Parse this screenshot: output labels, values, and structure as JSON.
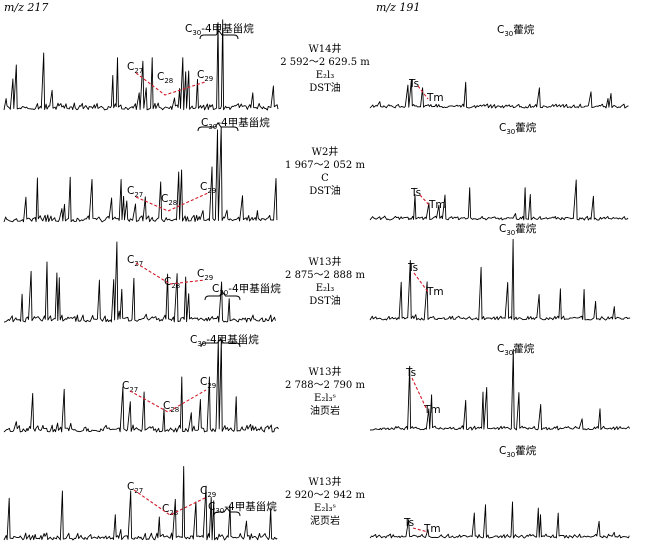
{
  "headers": {
    "left": "m/z 217",
    "right": "m/z 191"
  },
  "chart_data": {
    "type": "line",
    "title": "",
    "panels": [
      {
        "well": "W14井",
        "depth": "2 592～2 629.5 m",
        "formation": "E₂l₃",
        "sample": "DST油",
        "m217_labels": {
          "c27": "C27",
          "c28": "C28",
          "c29": "C29",
          "methyl": "C30-4甲基甾烷"
        },
        "m191_labels": {
          "ts": "Ts",
          "tm": "Tm",
          "hopane": "C30藿烷"
        }
      },
      {
        "well": "W2井",
        "depth": "1 967～2 052 m",
        "formation": "C",
        "sample": "DST油",
        "m217_labels": {
          "c27": "C27",
          "c28": "C28",
          "c29": "C29",
          "methyl": "C30-4甲基甾烷"
        },
        "m191_labels": {
          "ts": "Ts",
          "tm": "Tm",
          "hopane": "C30藿烷"
        }
      },
      {
        "well": "W13井",
        "depth": "2 875～2 888 m",
        "formation": "E₂l₃",
        "sample": "DST油",
        "m217_labels": {
          "c27": "C27",
          "c28": "C28",
          "c29": "C29",
          "methyl": "C30-4甲基甾烷"
        },
        "m191_labels": {
          "ts": "Ts",
          "tm": "Tm",
          "hopane": "C30藿烷"
        }
      },
      {
        "well": "W13井",
        "depth": "2 788～2 790 m",
        "formation": "E₂l₃ˢ",
        "sample": "油页岩",
        "m217_labels": {
          "c27": "C27",
          "c28": "C28",
          "c29": "C29",
          "methyl": "C30-4甲基甾烷"
        },
        "m191_labels": {
          "ts": "Ts",
          "tm": "Tm",
          "hopane": "C30藿烷"
        }
      },
      {
        "well": "W13井",
        "depth": "2 920～2 942 m",
        "formation": "E₂l₃ˢ",
        "sample": "泥页岩",
        "m217_labels": {
          "c27": "C27",
          "c28": "C28",
          "c29": "C29",
          "methyl": "C30-4甲基甾烷"
        },
        "m191_labels": {
          "ts": "Ts",
          "tm": "Tm",
          "hopane": "C30藿烷"
        }
      }
    ]
  },
  "colors": {
    "trace": "#000000",
    "ratio_line": "#d41a2a"
  }
}
